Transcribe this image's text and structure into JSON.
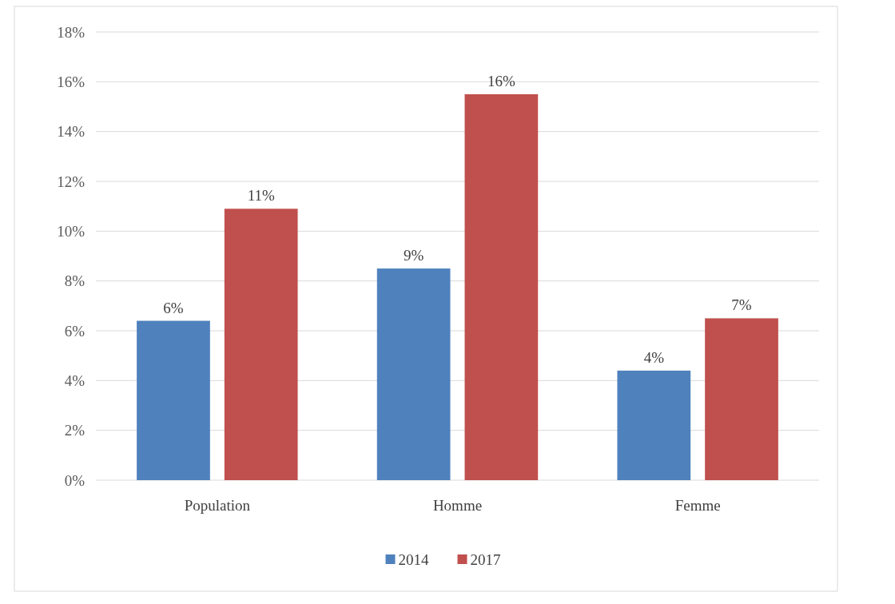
{
  "chart_data": {
    "type": "bar",
    "categories": [
      "Population",
      "Homme",
      "Femme"
    ],
    "series": [
      {
        "name": "2014",
        "color": "#4f81bd",
        "values": [
          6.4,
          8.5,
          4.4
        ],
        "value_labels": [
          "6%",
          "9%",
          "4%"
        ]
      },
      {
        "name": "2017",
        "color": "#c0504d",
        "values": [
          10.9,
          15.5,
          6.5
        ],
        "value_labels": [
          "11%",
          "16%",
          "7%"
        ]
      }
    ],
    "ylim": [
      0,
      18
    ],
    "yticks": [
      {
        "value": 0,
        "label": "0%"
      },
      {
        "value": 2,
        "label": "2%"
      },
      {
        "value": 4,
        "label": "4%"
      },
      {
        "value": 6,
        "label": "6%"
      },
      {
        "value": 8,
        "label": "8%"
      },
      {
        "value": 10,
        "label": "10%"
      },
      {
        "value": 12,
        "label": "12%"
      },
      {
        "value": 14,
        "label": "14%"
      },
      {
        "value": 16,
        "label": "16%"
      },
      {
        "value": 18,
        "label": "18%"
      }
    ],
    "grid": "y",
    "legend": "bottom"
  }
}
